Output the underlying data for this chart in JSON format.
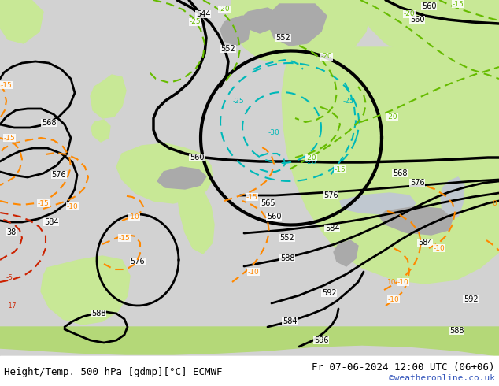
{
  "title_left": "Height/Temp. 500 hPa [gdmp][°C] ECMWF",
  "title_right": "Fr 07-06-2024 12:00 UTC (06+06)",
  "credit": "©weatheronline.co.uk",
  "bg_gray": "#d2d2d2",
  "land_green": "#c8e896",
  "land_green2": "#b4d878",
  "mountain_gray": "#aaaaaa",
  "water_gray": "#c0c8d0",
  "bottom_bar": "#ffffff",
  "c_black": "#000000",
  "c_cyan": "#00b8b8",
  "c_green": "#66bb00",
  "c_orange": "#ff8800",
  "c_red": "#cc2200",
  "c_credit": "#3355bb",
  "fs_main": 9,
  "fs_label": 7,
  "fs_credit": 8
}
